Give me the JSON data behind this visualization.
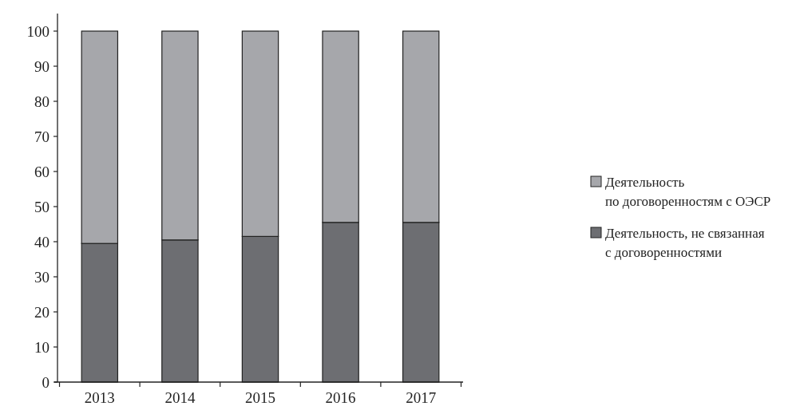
{
  "chart_data": {
    "type": "bar",
    "stacked": true,
    "categories": [
      "2013",
      "2014",
      "2015",
      "2016",
      "2017"
    ],
    "series": [
      {
        "name": "Деятельность, не связанная\nс договоренностями",
        "color": "#6d6e72",
        "values": [
          39.5,
          40.5,
          41.5,
          45.5,
          45.5
        ]
      },
      {
        "name": "Деятельность\nпо договоренностям с ОЭСР",
        "color": "#a6a7ab",
        "values": [
          60.5,
          59.5,
          58.5,
          54.5,
          54.5
        ]
      }
    ],
    "ylim": [
      0,
      105
    ],
    "yticks": [
      0,
      10,
      20,
      30,
      40,
      50,
      60,
      70,
      80,
      90,
      100
    ],
    "legend": "right"
  }
}
